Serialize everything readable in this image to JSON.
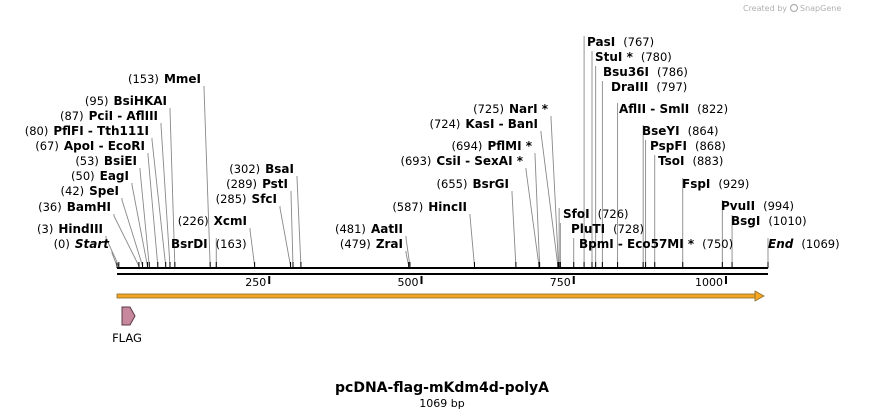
{
  "credit": {
    "text": "Created by",
    "brand": "SnapGene"
  },
  "plasmid": {
    "name": "pcDNA-flag-mKdm4d-polyA",
    "length_label": "1069 bp",
    "length": 1069
  },
  "colors": {
    "orf_arrow": "#f5a623",
    "orf_outline": "#8a6a2a",
    "feature_fill": "#c7889e",
    "feature_outline": "#5a3a48",
    "leader": "#888888"
  },
  "ruler": {
    "ticks": [
      "250",
      "500",
      "750",
      "1000"
    ],
    "tick_values": [
      250,
      500,
      750,
      1000
    ]
  },
  "features": [
    {
      "name": "FLAG",
      "start": 3,
      "end": 24
    }
  ],
  "orf": {
    "start": 0,
    "end": 1069
  },
  "sites": [
    {
      "id": "start",
      "pos": "(0)",
      "name": "Start",
      "bp": 0,
      "italic": true
    },
    {
      "id": "hindiii",
      "pos": "(3)",
      "name": "HindIII",
      "bp": 3
    },
    {
      "id": "bamhi",
      "pos": "(36)",
      "name": "BamHI",
      "bp": 36
    },
    {
      "id": "spei",
      "pos": "(42)",
      "name": "SpeI",
      "bp": 42
    },
    {
      "id": "eagi",
      "pos": "(50)",
      "name": "EagI",
      "bp": 50
    },
    {
      "id": "bsiei",
      "pos": "(53)",
      "name": "BsiEI",
      "bp": 53
    },
    {
      "id": "apoi",
      "pos": "(67)",
      "name": "ApoI",
      "alt": "EcoRI",
      "bp": 67
    },
    {
      "id": "pflfi",
      "pos": "(80)",
      "name": "PflFI",
      "alt": "Tth111I",
      "bp": 80
    },
    {
      "id": "pcii",
      "pos": "(87)",
      "name": "PciI",
      "alt": "AflIII",
      "bp": 87
    },
    {
      "id": "bsihkai",
      "pos": "(95)",
      "name": "BsiHKAI",
      "bp": 95
    },
    {
      "id": "mmei",
      "pos": "(153)",
      "name": "MmeI",
      "bp": 153
    },
    {
      "id": "bsrdi",
      "pos": "(163)",
      "name": "BsrDI",
      "bp": 163
    },
    {
      "id": "xcmi",
      "pos": "(226)",
      "name": "XcmI",
      "bp": 226
    },
    {
      "id": "sfci",
      "pos": "(285)",
      "name": "SfcI",
      "bp": 285
    },
    {
      "id": "psti",
      "pos": "(289)",
      "name": "PstI",
      "bp": 289
    },
    {
      "id": "bsai",
      "pos": "(302)",
      "name": "BsaI",
      "bp": 302
    },
    {
      "id": "zrai",
      "pos": "(479)",
      "name": "ZraI",
      "bp": 479
    },
    {
      "id": "aatii",
      "pos": "(481)",
      "name": "AatII",
      "bp": 481
    },
    {
      "id": "hincii",
      "pos": "(587)",
      "name": "HincII",
      "bp": 587
    },
    {
      "id": "bsrgi",
      "pos": "(655)",
      "name": "BsrGI",
      "bp": 655
    },
    {
      "id": "csii",
      "pos": "(693)",
      "name": "CsiI",
      "alt": "SexAI *",
      "bp": 693
    },
    {
      "id": "pflmi",
      "pos": "(694)",
      "name": "PflMI *",
      "bp": 694
    },
    {
      "id": "kasi",
      "pos": "(724)",
      "name": "KasI",
      "alt": "BanI",
      "bp": 724
    },
    {
      "id": "nari",
      "pos": "(725)",
      "name": "NarI *",
      "bp": 725
    },
    {
      "id": "sfoi",
      "pos": "(726)",
      "name": "SfoI",
      "bp": 726
    },
    {
      "id": "pluti",
      "pos": "(728)",
      "name": "PluTI",
      "bp": 728
    },
    {
      "id": "bpmi",
      "pos": "(750)",
      "name": "BpmI",
      "alt": "Eco57MI *",
      "bp": 750
    },
    {
      "id": "pasi",
      "pos": "(767)",
      "name": "PasI",
      "bp": 767
    },
    {
      "id": "stui",
      "pos": "(780)",
      "name": "StuI *",
      "bp": 780
    },
    {
      "id": "bsu36i",
      "pos": "(786)",
      "name": "Bsu36I",
      "bp": 786
    },
    {
      "id": "draiii",
      "pos": "(797)",
      "name": "DraIII",
      "bp": 797
    },
    {
      "id": "aflii",
      "pos": "(822)",
      "name": "AflII",
      "alt": "SmlI",
      "bp": 822
    },
    {
      "id": "bseyi",
      "pos": "(864)",
      "name": "BseYI",
      "bp": 864
    },
    {
      "id": "pspfi",
      "pos": "(868)",
      "name": "PspFI",
      "bp": 868
    },
    {
      "id": "tsoi",
      "pos": "(883)",
      "name": "TsoI",
      "bp": 883
    },
    {
      "id": "fspi",
      "pos": "(929)",
      "name": "FspI",
      "bp": 929
    },
    {
      "id": "pvuii",
      "pos": "(994)",
      "name": "PvuII",
      "bp": 994
    },
    {
      "id": "bsgi",
      "pos": "(1010)",
      "name": "BsgI",
      "bp": 1010
    },
    {
      "id": "end",
      "pos": "(1069)",
      "name": "End",
      "bp": 1069,
      "italic": true
    }
  ]
}
